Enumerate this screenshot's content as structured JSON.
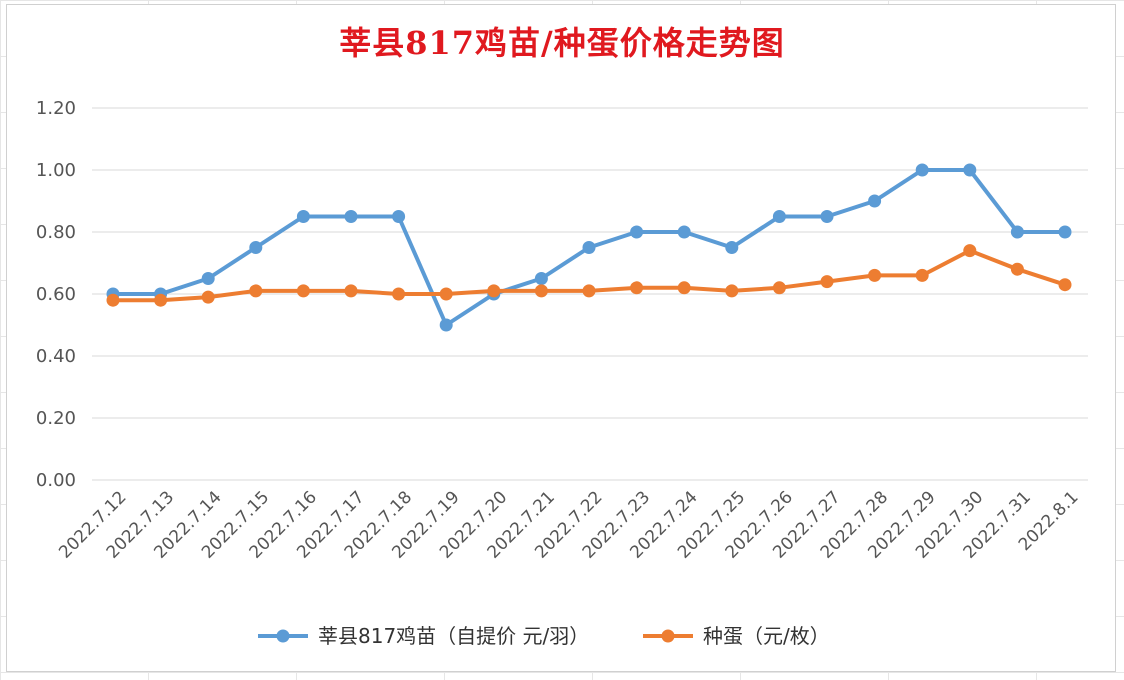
{
  "chart_data": {
    "type": "line",
    "title": "莘县817鸡苗/种蛋价格走势图",
    "categories": [
      "2022.7.12",
      "2022.7.13",
      "2022.7.14",
      "2022.7.15",
      "2022.7.16",
      "2022.7.17",
      "2022.7.18",
      "2022.7.19",
      "2022.7.20",
      "2022.7.21",
      "2022.7.22",
      "2022.7.23",
      "2022.7.24",
      "2022.7.25",
      "2022.7.26",
      "2022.7.27",
      "2022.7.28",
      "2022.7.29",
      "2022.7.30",
      "2022.7.31",
      "2022.8.1"
    ],
    "series": [
      {
        "name": "莘县817鸡苗（自提价 元/羽）",
        "color": "#5b9bd5",
        "values": [
          0.6,
          0.6,
          0.65,
          0.75,
          0.85,
          0.85,
          0.85,
          0.5,
          0.6,
          0.65,
          0.75,
          0.8,
          0.8,
          0.75,
          0.85,
          0.85,
          0.9,
          1.0,
          1.0,
          0.8,
          0.8
        ]
      },
      {
        "name": "种蛋（元/枚）",
        "color": "#ed7d31",
        "values": [
          0.58,
          0.58,
          0.59,
          0.61,
          0.61,
          0.61,
          0.6,
          0.6,
          0.61,
          0.61,
          0.61,
          0.62,
          0.62,
          0.61,
          0.62,
          0.64,
          0.66,
          0.66,
          0.74,
          0.68,
          0.63
        ]
      }
    ],
    "y_ticks": [
      "0.00",
      "0.20",
      "0.40",
      "0.60",
      "0.80",
      "1.00",
      "1.20"
    ],
    "ylim": [
      0,
      1.2
    ],
    "grid": true,
    "legend_position": "bottom"
  }
}
